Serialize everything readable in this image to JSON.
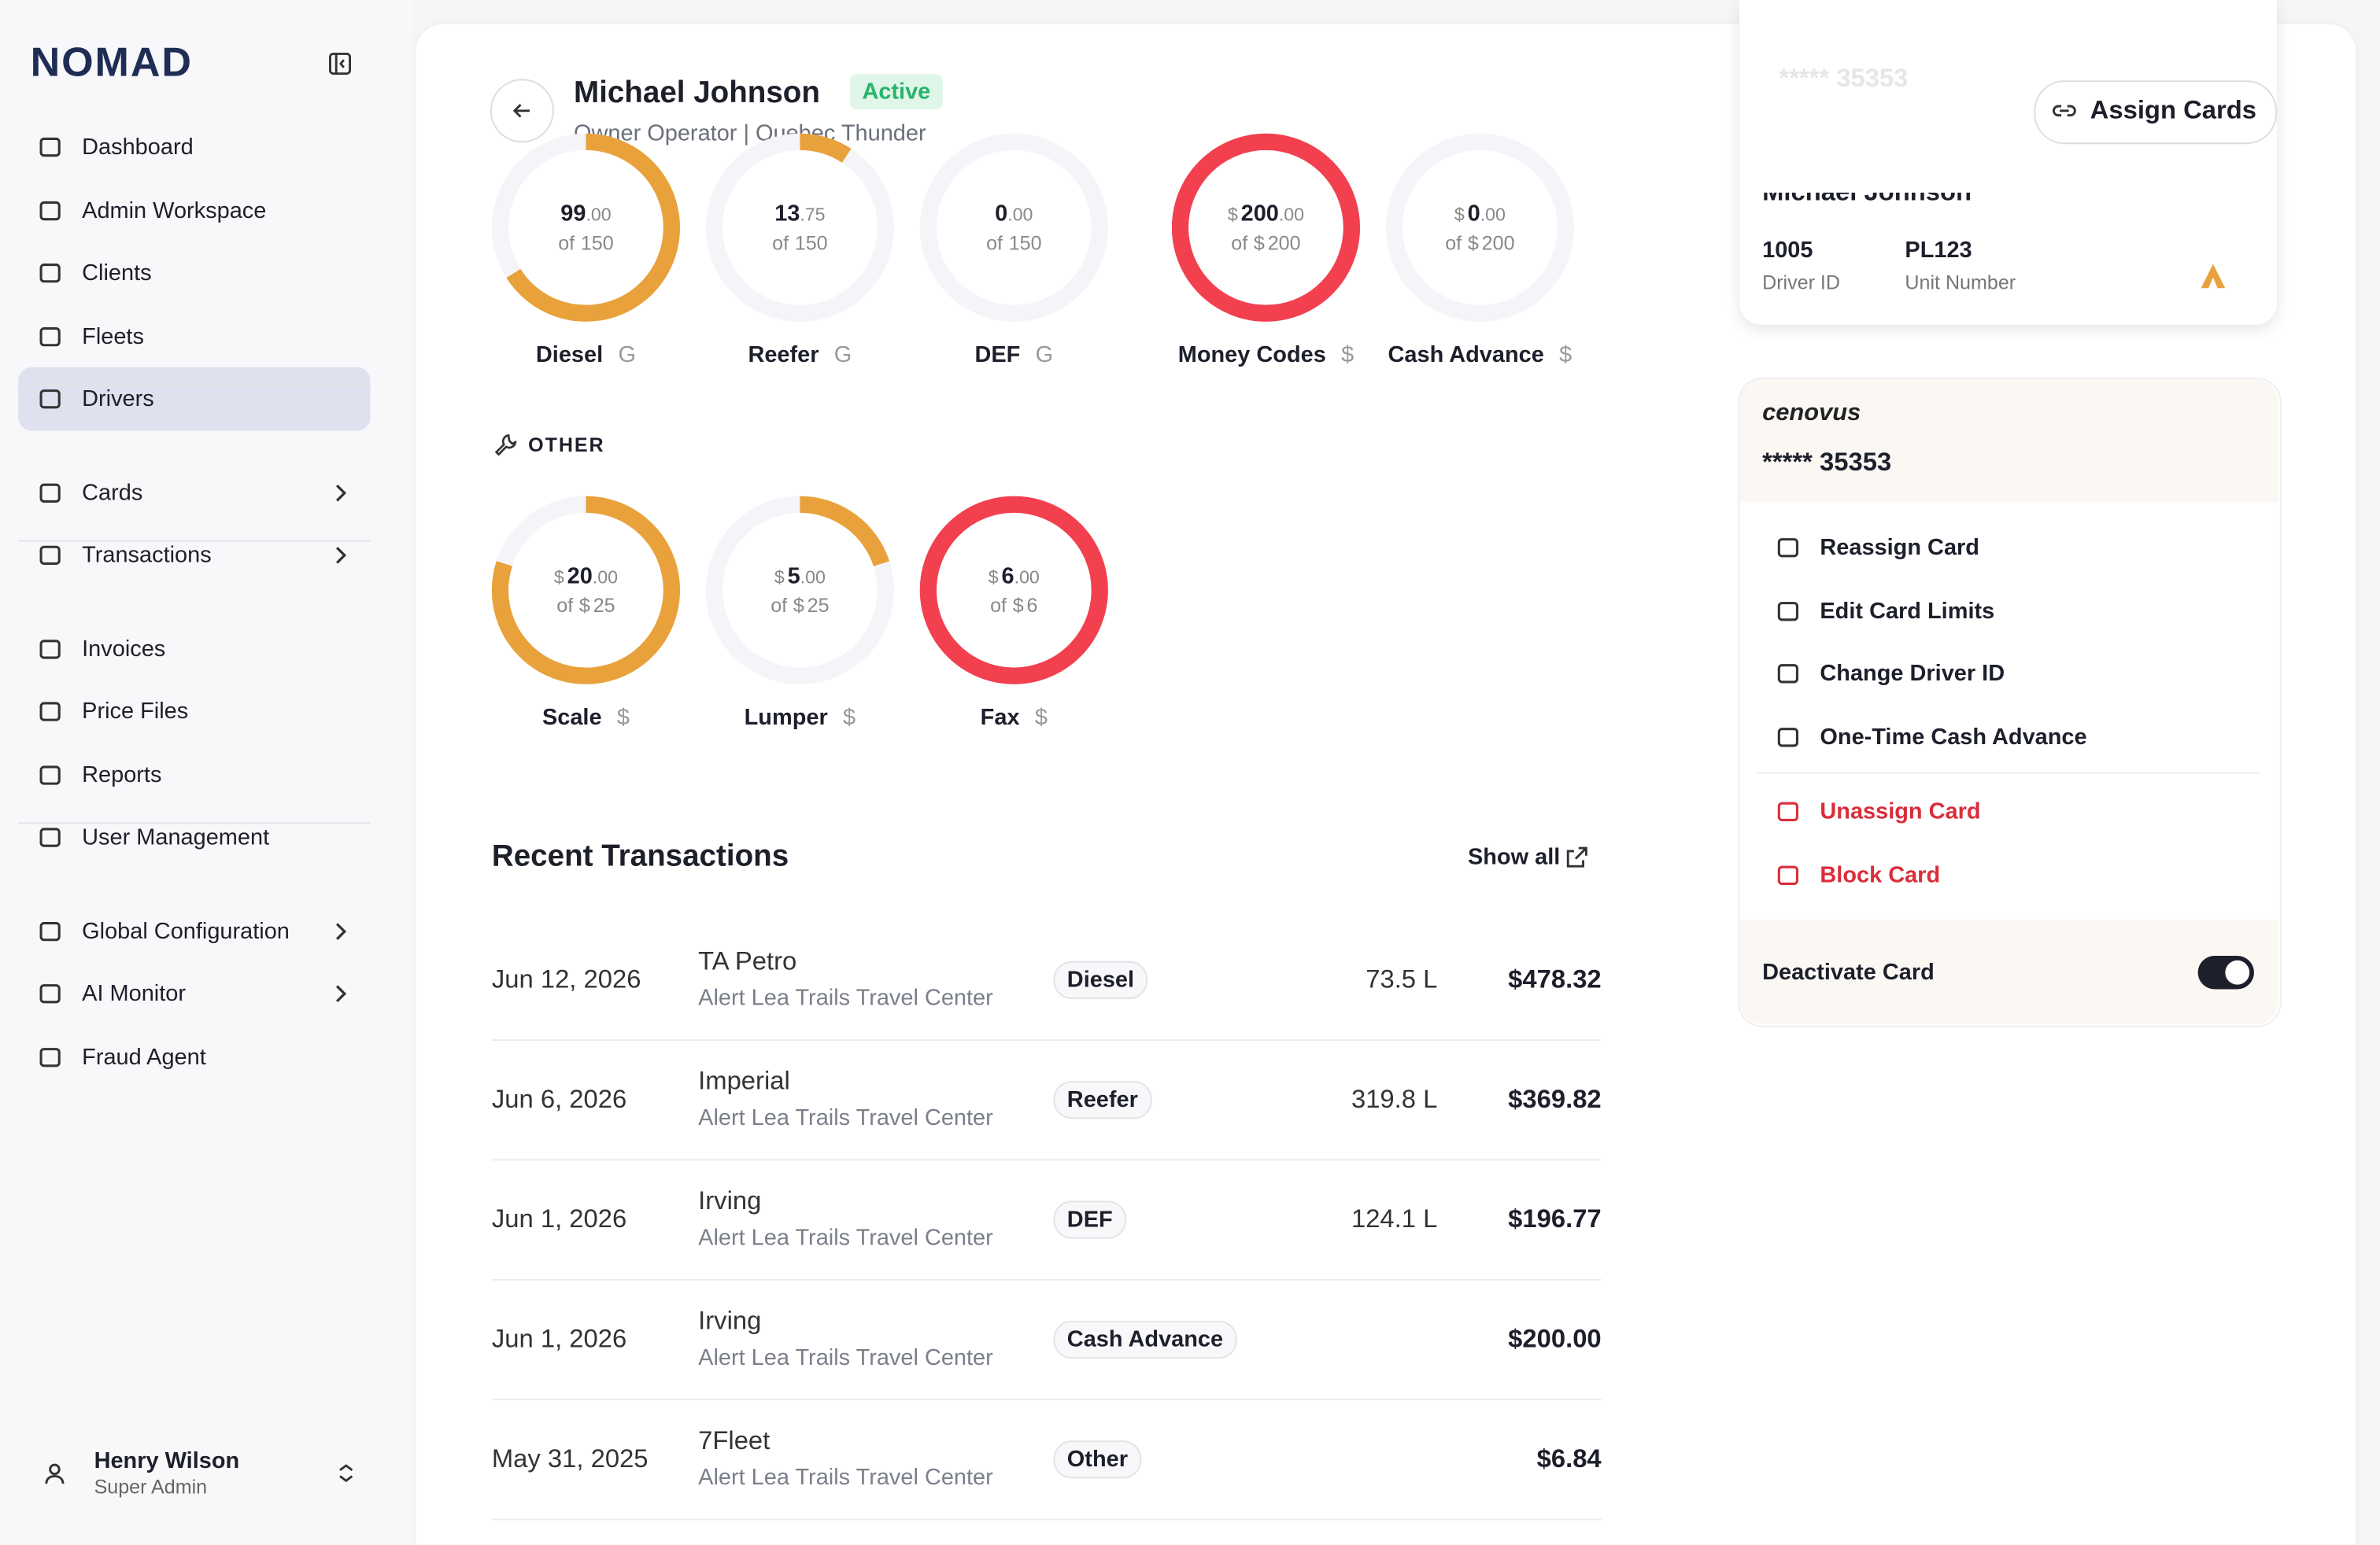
{
  "sidebar": {
    "logo": "NOMAD",
    "nav": [
      [
        {
          "label": "Dashboard"
        },
        {
          "label": "Admin Workspace"
        },
        {
          "label": "Clients"
        },
        {
          "label": "Fleets"
        },
        {
          "label": "Drivers",
          "active": true
        }
      ],
      [
        {
          "label": "Cards",
          "expandable": true
        },
        {
          "label": "Transactions",
          "expandable": true
        }
      ],
      [
        {
          "label": "Invoices"
        },
        {
          "label": "Price Files"
        },
        {
          "label": "Reports"
        },
        {
          "label": "User Management"
        }
      ],
      [
        {
          "label": "Global Configuration",
          "expandable": true
        },
        {
          "label": "AI Monitor",
          "expandable": true
        },
        {
          "label": "Fraud Agent"
        }
      ]
    ],
    "user": {
      "name": "Henry Wilson",
      "role": "Super Admin"
    }
  },
  "header": {
    "name": "Michael Johnson",
    "status": "Active",
    "subtitle": "Owner Operator | Quebec Thunder",
    "assign_button": "Assign Cards"
  },
  "limits": [
    {
      "label": "Diesel",
      "unit": "G",
      "value": 99,
      "value_label": "99.00",
      "of_label": "of",
      "max": 150,
      "color": "#e9a23b"
    },
    {
      "label": "Reefer",
      "unit": "G",
      "value": 13.75,
      "value_label": "13.75",
      "of_label": "of",
      "max": 150,
      "color": "#e9a23b"
    },
    {
      "label": "DEF",
      "unit": "G",
      "value": 0,
      "value_label": "0.00",
      "of_label": "of",
      "max": 150,
      "color": "#e9a23b"
    },
    {
      "label": "Money Codes",
      "unit": "$",
      "prefix": "$",
      "value": 200,
      "value_label": "200.00",
      "of_label": "of",
      "max": 200,
      "color": "#f2404f"
    },
    {
      "label": "Cash Advance",
      "unit": "$",
      "prefix": "$",
      "value": 0,
      "value_label": "0.00",
      "of_label": "of",
      "max": 200,
      "color": "#f2404f"
    }
  ],
  "other": {
    "title": "OTHER",
    "limits": [
      {
        "label": "Scale",
        "unit": "$",
        "prefix": "$",
        "value": 20,
        "value_label": "20.00",
        "of_label": "of",
        "max": 25,
        "color": "#e9a23b"
      },
      {
        "label": "Lumper",
        "unit": "$",
        "prefix": "$",
        "value": 5,
        "value_label": "5.00",
        "of_label": "of",
        "max": 25,
        "color": "#e9a23b"
      },
      {
        "label": "Fax",
        "unit": "$",
        "prefix": "$",
        "value": 6,
        "value_label": "6.00",
        "of_label": "of",
        "max": 6,
        "color": "#f2404f"
      }
    ]
  },
  "transactions": {
    "title": "Recent Transactions",
    "show_all": "Show all",
    "rows": [
      {
        "date": "Jun 12, 2026",
        "merchant": "TA Petro",
        "location": "Alert Lea Trails Travel Center",
        "category": "Diesel",
        "volume": "73.5 L",
        "amount": "$478.32"
      },
      {
        "date": "Jun 6, 2026",
        "merchant": "Imperial",
        "location": "Alert Lea Trails Travel Center",
        "category": "Reefer",
        "volume": "319.8 L",
        "amount": "$369.82"
      },
      {
        "date": "Jun 1, 2026",
        "merchant": "Irving",
        "location": "Alert Lea Trails Travel Center",
        "category": "DEF",
        "volume": "124.1 L",
        "amount": "$196.77"
      },
      {
        "date": "Jun 1, 2026",
        "merchant": "Irving",
        "location": "Alert Lea Trails Travel Center",
        "category": "Cash Advance",
        "volume": null,
        "amount": "$200.00"
      },
      {
        "date": "May 31, 2025",
        "merchant": "7Fleet",
        "location": "Alert Lea Trails Travel Center",
        "category": "Other",
        "volume": null,
        "amount": "$6.84"
      }
    ]
  },
  "card": {
    "number": "***** 35353",
    "name": "Michael Johnson",
    "driver_id": "1005",
    "driver_id_label": "Driver ID",
    "unit_number": "PL123",
    "unit_number_label": "Unit Number"
  },
  "card_menu": {
    "brand": "cenovus",
    "number": "***** 35353",
    "actions": [
      "Reassign Card",
      "Edit Card Limits",
      "Change Driver ID",
      "One-Time Cash Advance"
    ],
    "danger_actions": [
      "Unassign Card",
      "Block Card"
    ],
    "deactivate": "Deactivate Card",
    "deactivate_on": true
  }
}
